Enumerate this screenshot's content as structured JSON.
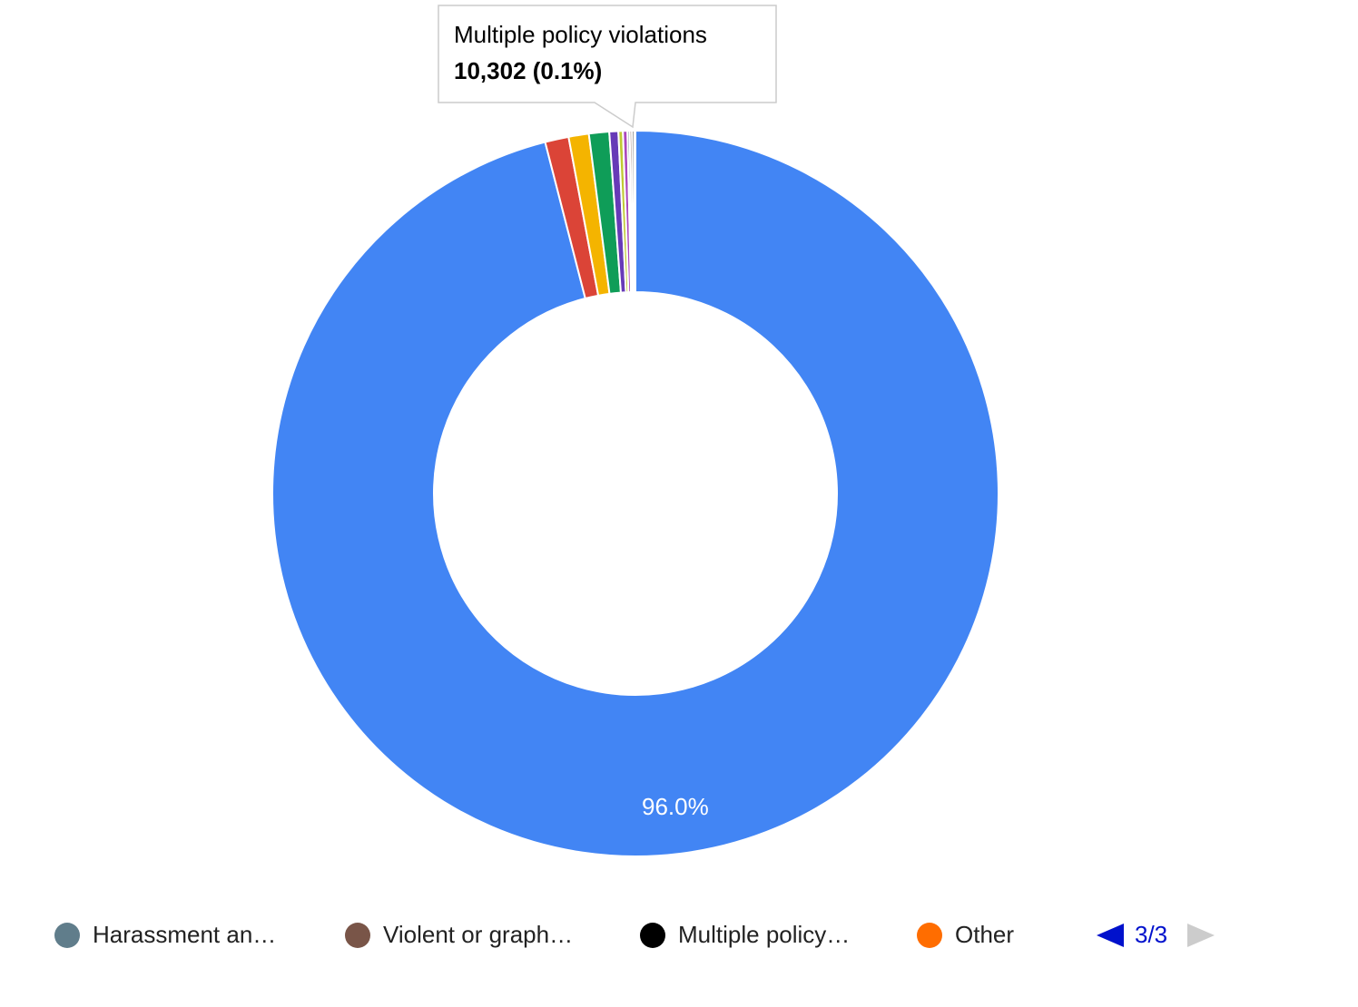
{
  "chart_data": {
    "type": "donut",
    "categories": [
      null,
      null,
      null,
      null,
      null,
      null,
      null,
      "Harassment an…",
      "Violent or graph…",
      "Multiple policy…",
      "Other"
    ],
    "values": [
      96.0,
      1.05,
      0.9,
      0.9,
      0.4,
      0.2,
      0.2,
      0.1,
      0.1,
      0.1,
      0.05
    ],
    "value_labels": [
      "96.0%",
      null,
      null,
      null,
      null,
      null,
      null,
      null,
      null,
      null,
      null
    ],
    "colors": [
      "#4285f4",
      "#db4437",
      "#f4b400",
      "#0f9d58",
      "#673ab7",
      "#c0ca33",
      "#ab47bc",
      "#607d8b",
      "#795548",
      "#000000",
      "#ff6d00"
    ],
    "legend_page": "3/3",
    "tooltip": {
      "title": "Multiple policy violations",
      "value_label": "10,302 (0.1%)",
      "value": 0.1
    }
  }
}
